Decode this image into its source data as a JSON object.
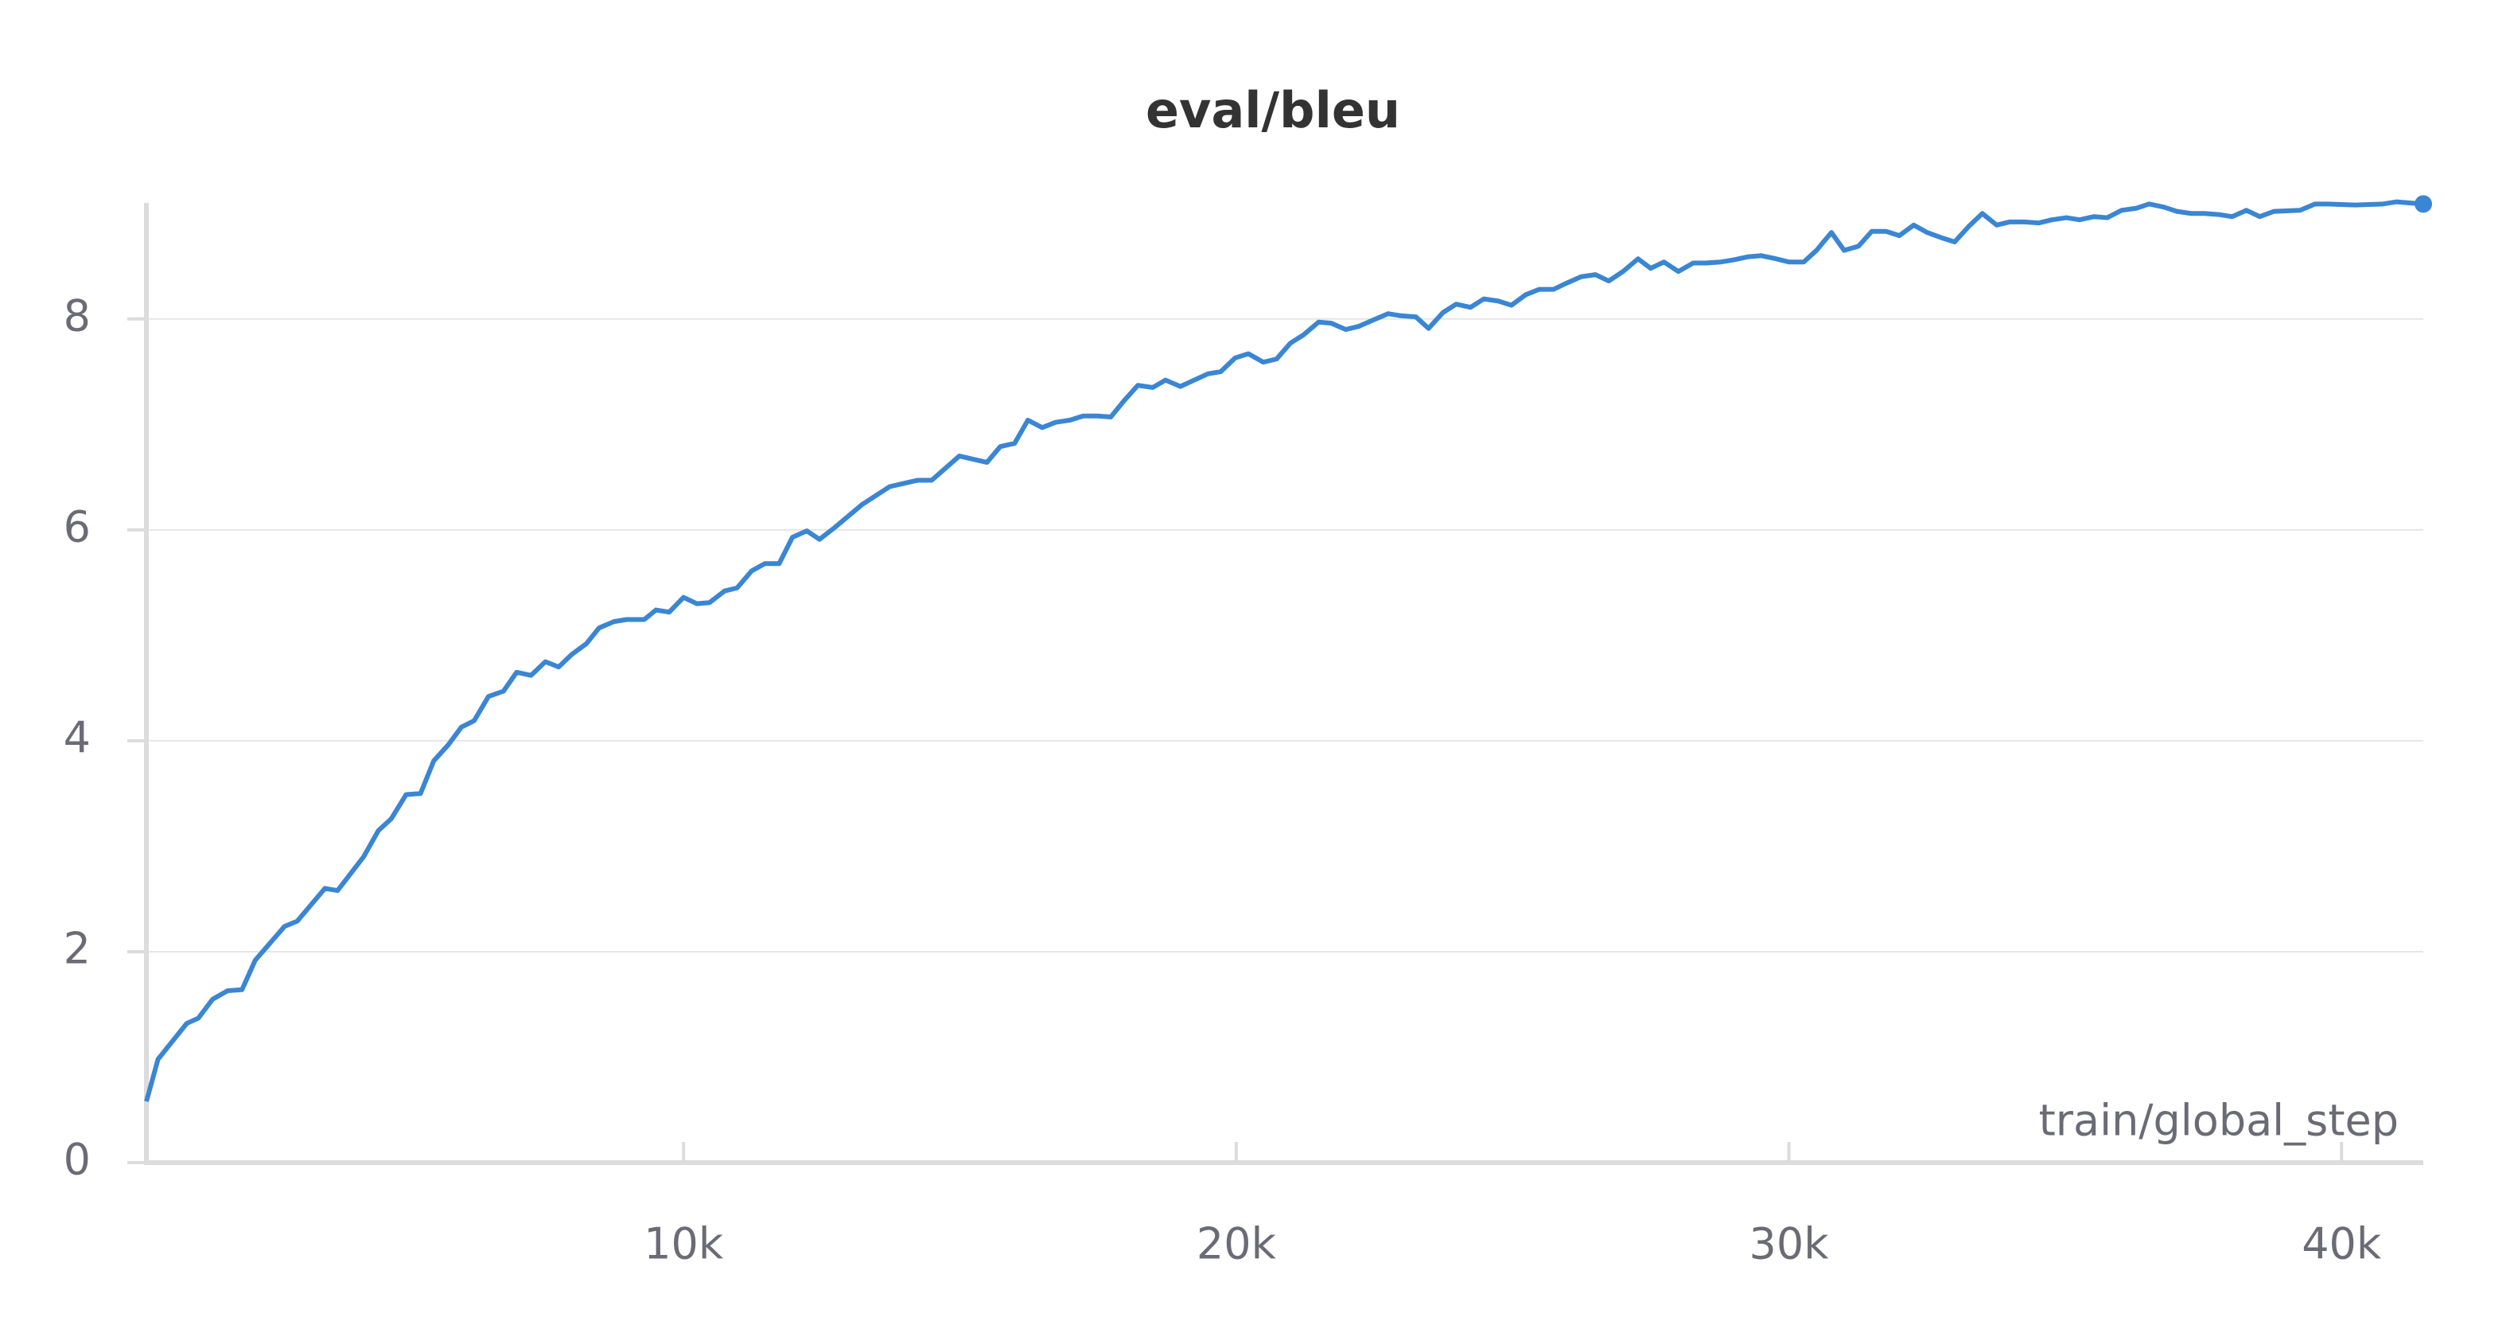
{
  "chart_data": {
    "type": "line",
    "title": "eval/bleu",
    "x_label": "train/global_step",
    "x": [
      280,
      490,
      1010,
      1220,
      1480,
      1750,
      2010,
      2250,
      2780,
      3010,
      3510,
      3740,
      4210,
      4480,
      4710,
      4980,
      5240,
      5480,
      5740,
      5980,
      6210,
      6470,
      6740,
      6980,
      7240,
      7500,
      7740,
      7980,
      8240,
      8470,
      8740,
      8970,
      9290,
      9500,
      9740,
      10000,
      10240,
      10470,
      10740,
      10970,
      11230,
      11470,
      11730,
      11970,
      12230,
      12460,
      12730,
      13230,
      13730,
      14230,
      14490,
      14990,
      15490,
      15730,
      15990,
      16230,
      16490,
      16730,
      16990,
      17230,
      17490,
      17730,
      17980,
      18220,
      18490,
      18720,
      18990,
      19490,
      19720,
      19980,
      20220,
      20490,
      20730,
      20980,
      21220,
      21490,
      21720,
      21980,
      22220,
      22480,
      22750,
      22980,
      23250,
      23480,
      23740,
      23980,
      24240,
      24480,
      24740,
      24980,
      25240,
      25480,
      25740,
      25980,
      26240,
      26500,
      26740,
      27000,
      27270,
      27500,
      27740,
      28000,
      28270,
      28500,
      28770,
      29000,
      29270,
      29500,
      29770,
      30000,
      30270,
      30500,
      30770,
      31000,
      31260,
      31500,
      31760,
      32000,
      32260,
      32500,
      32760,
      33000,
      33260,
      33500,
      33760,
      34000,
      34260,
      34520,
      34760,
      35020,
      35260,
      35520,
      35760,
      36020,
      36290,
      36520,
      36790,
      37020,
      37280,
      37520,
      37780,
      38020,
      38280,
      38520,
      38780,
      39250,
      39520,
      39750,
      40250,
      40750,
      40990,
      41480
    ],
    "series": [
      {
        "name": "eval/bleu",
        "color": "#3a86d4",
        "values": [
          0.58,
          0.98,
          1.32,
          1.37,
          1.55,
          1.63,
          1.64,
          1.92,
          2.24,
          2.29,
          2.6,
          2.58,
          2.9,
          3.15,
          3.26,
          3.49,
          3.5,
          3.81,
          3.96,
          4.13,
          4.19,
          4.42,
          4.47,
          4.65,
          4.62,
          4.75,
          4.7,
          4.82,
          4.92,
          5.07,
          5.13,
          5.15,
          5.15,
          5.24,
          5.22,
          5.36,
          5.3,
          5.31,
          5.42,
          5.45,
          5.61,
          5.68,
          5.68,
          5.93,
          5.99,
          5.91,
          6.02,
          6.24,
          6.41,
          6.47,
          6.47,
          6.7,
          6.64,
          6.79,
          6.82,
          7.04,
          6.97,
          7.02,
          7.04,
          7.08,
          7.08,
          7.07,
          7.23,
          7.37,
          7.35,
          7.42,
          7.36,
          7.48,
          7.5,
          7.63,
          7.67,
          7.59,
          7.62,
          7.77,
          7.85,
          7.97,
          7.96,
          7.9,
          7.93,
          7.99,
          8.05,
          8.03,
          8.02,
          7.91,
          8.06,
          8.14,
          8.11,
          8.19,
          8.17,
          8.13,
          8.23,
          8.28,
          8.28,
          8.34,
          8.4,
          8.42,
          8.36,
          8.45,
          8.57,
          8.48,
          8.54,
          8.45,
          8.53,
          8.53,
          8.54,
          8.56,
          8.59,
          8.6,
          8.57,
          8.54,
          8.54,
          8.65,
          8.82,
          8.65,
          8.69,
          8.83,
          8.83,
          8.79,
          8.89,
          8.82,
          8.77,
          8.73,
          8.88,
          9.0,
          8.89,
          8.92,
          8.92,
          8.91,
          8.94,
          8.96,
          8.94,
          8.97,
          8.96,
          9.03,
          9.05,
          9.09,
          9.06,
          9.02,
          9.0,
          9.0,
          8.99,
          8.97,
          9.03,
          8.97,
          9.02,
          9.03,
          9.09,
          9.09,
          9.08,
          9.09,
          9.11,
          9.09
        ]
      }
    ],
    "xlim": [
      280,
      41480
    ],
    "ylim": [
      0,
      9.1
    ],
    "xticks": [
      {
        "value": 10000,
        "label": "10k"
      },
      {
        "value": 20000,
        "label": "20k"
      },
      {
        "value": 30000,
        "label": "30k"
      },
      {
        "value": 40000,
        "label": "40k"
      }
    ],
    "yticks": [
      0,
      2,
      4,
      6,
      8
    ],
    "grid": true
  }
}
